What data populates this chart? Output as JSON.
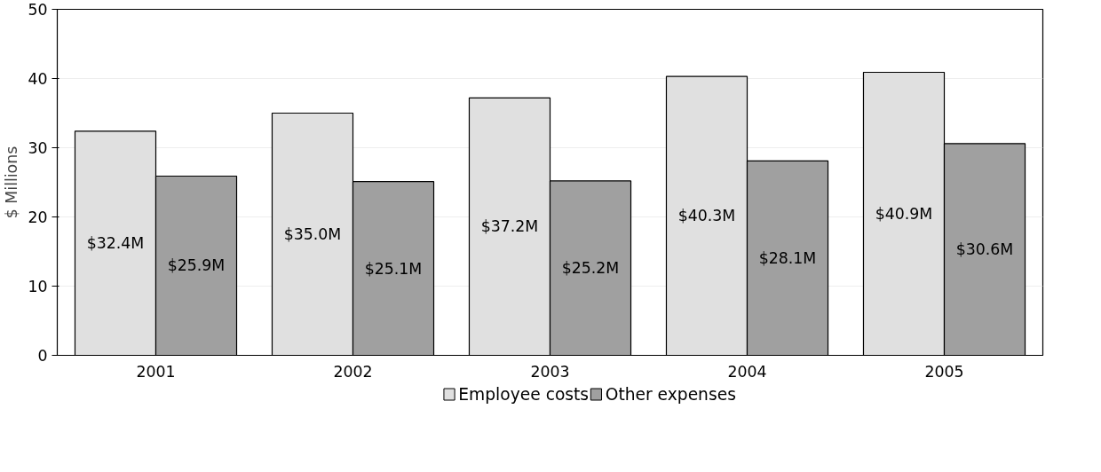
{
  "chart_data": {
    "type": "bar",
    "ylabel": "$ Millions",
    "categories": [
      "2001",
      "2002",
      "2003",
      "2004",
      "2005"
    ],
    "series": [
      {
        "name": "Employee costs",
        "color": "#e0e0e0",
        "values": [
          32.4,
          35.0,
          37.2,
          40.3,
          40.9
        ],
        "value_labels": [
          "$32.4M",
          "$35.0M",
          "$37.2M",
          "$40.3M",
          "$40.9M"
        ]
      },
      {
        "name": "Other expenses",
        "color": "#a0a0a0",
        "values": [
          25.9,
          25.1,
          25.2,
          28.1,
          30.6
        ],
        "value_labels": [
          "$25.9M",
          "$25.1M",
          "$25.2M",
          "$28.1M",
          "$30.6M"
        ]
      }
    ],
    "ylim": [
      0,
      50
    ],
    "yticks": [
      0,
      10,
      20,
      30,
      40,
      50
    ],
    "grid": "y",
    "legend": "bottom"
  }
}
